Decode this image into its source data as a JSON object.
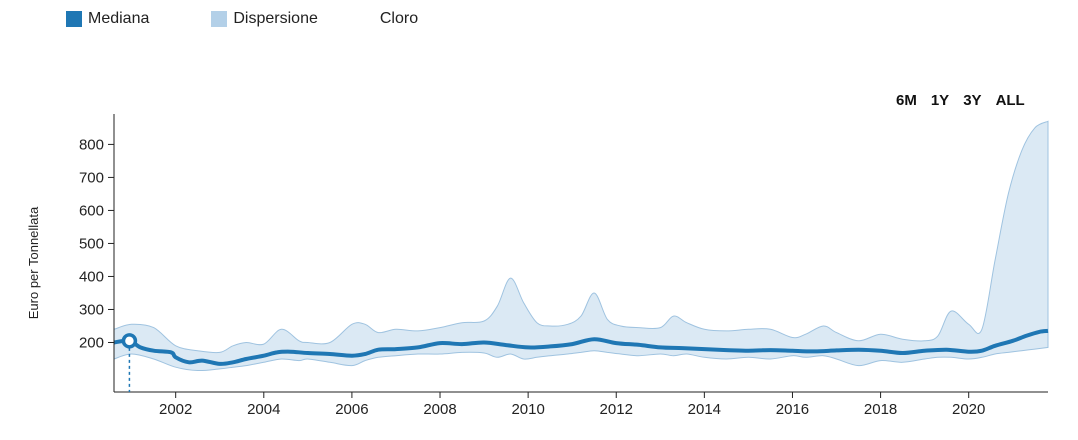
{
  "legend": {
    "items": [
      {
        "label": "Mediana",
        "color": "#1f77b4"
      },
      {
        "label": "Dispersione",
        "color": "#b3d0e8"
      },
      {
        "label": "Cloro",
        "color": ""
      }
    ]
  },
  "range_buttons": [
    "6M",
    "1Y",
    "3Y",
    "ALL"
  ],
  "chart_data": {
    "type": "area",
    "ylabel": "Euro per Tonnellata",
    "xlabel": "",
    "yticks": [
      "200",
      "300",
      "400",
      "500",
      "600",
      "700",
      "800"
    ],
    "xticks": [
      "2002",
      "2004",
      "2006",
      "2008",
      "2010",
      "2012",
      "2014",
      "2016",
      "2018",
      "2020"
    ],
    "ylim": [
      50,
      880
    ],
    "xlim": [
      2000.6,
      2021.8
    ],
    "grid": false,
    "highlight_point": {
      "x": 2000.95,
      "y": 205
    },
    "series": [
      {
        "name": "Mediana",
        "color": "#1f77b4",
        "x": [
          2000.6,
          2000.95,
          2001.2,
          2001.5,
          2001.9,
          2002.0,
          2002.3,
          2002.6,
          2003.0,
          2003.3,
          2003.6,
          2004.0,
          2004.3,
          2004.6,
          2005.0,
          2005.5,
          2006.0,
          2006.3,
          2006.6,
          2007.0,
          2007.5,
          2008.0,
          2008.5,
          2009.0,
          2009.5,
          2010.0,
          2010.5,
          2011.0,
          2011.5,
          2012.0,
          2012.5,
          2013.0,
          2013.5,
          2014.0,
          2014.5,
          2015.0,
          2015.5,
          2016.0,
          2016.5,
          2017.0,
          2017.5,
          2018.0,
          2018.5,
          2019.0,
          2019.5,
          2020.0,
          2020.3,
          2020.6,
          2021.0,
          2021.3,
          2021.6,
          2021.8
        ],
        "y": [
          200,
          205,
          185,
          175,
          170,
          155,
          140,
          145,
          135,
          140,
          150,
          160,
          170,
          172,
          168,
          165,
          160,
          165,
          178,
          180,
          185,
          198,
          195,
          200,
          192,
          185,
          188,
          195,
          210,
          198,
          193,
          185,
          183,
          180,
          177,
          175,
          177,
          175,
          173,
          176,
          178,
          175,
          168,
          175,
          178,
          172,
          175,
          190,
          205,
          220,
          232,
          235
        ]
      },
      {
        "name": "Dispersione",
        "color": "#b3d0e8",
        "x": [
          2000.6,
          2001.0,
          2001.5,
          2002.0,
          2002.5,
          2003.0,
          2003.3,
          2003.6,
          2004.0,
          2004.4,
          2004.8,
          2005.0,
          2005.5,
          2006.0,
          2006.3,
          2006.6,
          2007.0,
          2007.5,
          2008.0,
          2008.5,
          2009.0,
          2009.3,
          2009.6,
          2009.9,
          2010.2,
          2010.5,
          2010.9,
          2011.2,
          2011.5,
          2011.8,
          2012.1,
          2012.5,
          2013.0,
          2013.3,
          2013.6,
          2014.0,
          2014.5,
          2015.0,
          2015.5,
          2016.0,
          2016.3,
          2016.7,
          2017.0,
          2017.5,
          2018.0,
          2018.5,
          2019.0,
          2019.3,
          2019.6,
          2020.0,
          2020.3,
          2020.6,
          2020.9,
          2021.2,
          2021.5,
          2021.8
        ],
        "upper": [
          240,
          255,
          245,
          190,
          175,
          170,
          190,
          200,
          195,
          240,
          205,
          200,
          200,
          255,
          255,
          230,
          240,
          235,
          245,
          260,
          265,
          310,
          395,
          320,
          260,
          250,
          255,
          280,
          350,
          270,
          250,
          245,
          245,
          280,
          260,
          240,
          235,
          240,
          240,
          215,
          225,
          250,
          230,
          205,
          225,
          210,
          205,
          220,
          295,
          255,
          240,
          450,
          650,
          780,
          850,
          870
        ],
        "lower": [
          150,
          165,
          150,
          125,
          115,
          120,
          125,
          130,
          140,
          150,
          145,
          150,
          140,
          130,
          145,
          155,
          160,
          165,
          165,
          170,
          168,
          155,
          165,
          150,
          155,
          160,
          165,
          170,
          175,
          170,
          165,
          160,
          165,
          160,
          165,
          155,
          150,
          155,
          150,
          160,
          155,
          160,
          150,
          130,
          145,
          140,
          150,
          155,
          155,
          150,
          155,
          165,
          170,
          175,
          180,
          185
        ]
      }
    ]
  }
}
